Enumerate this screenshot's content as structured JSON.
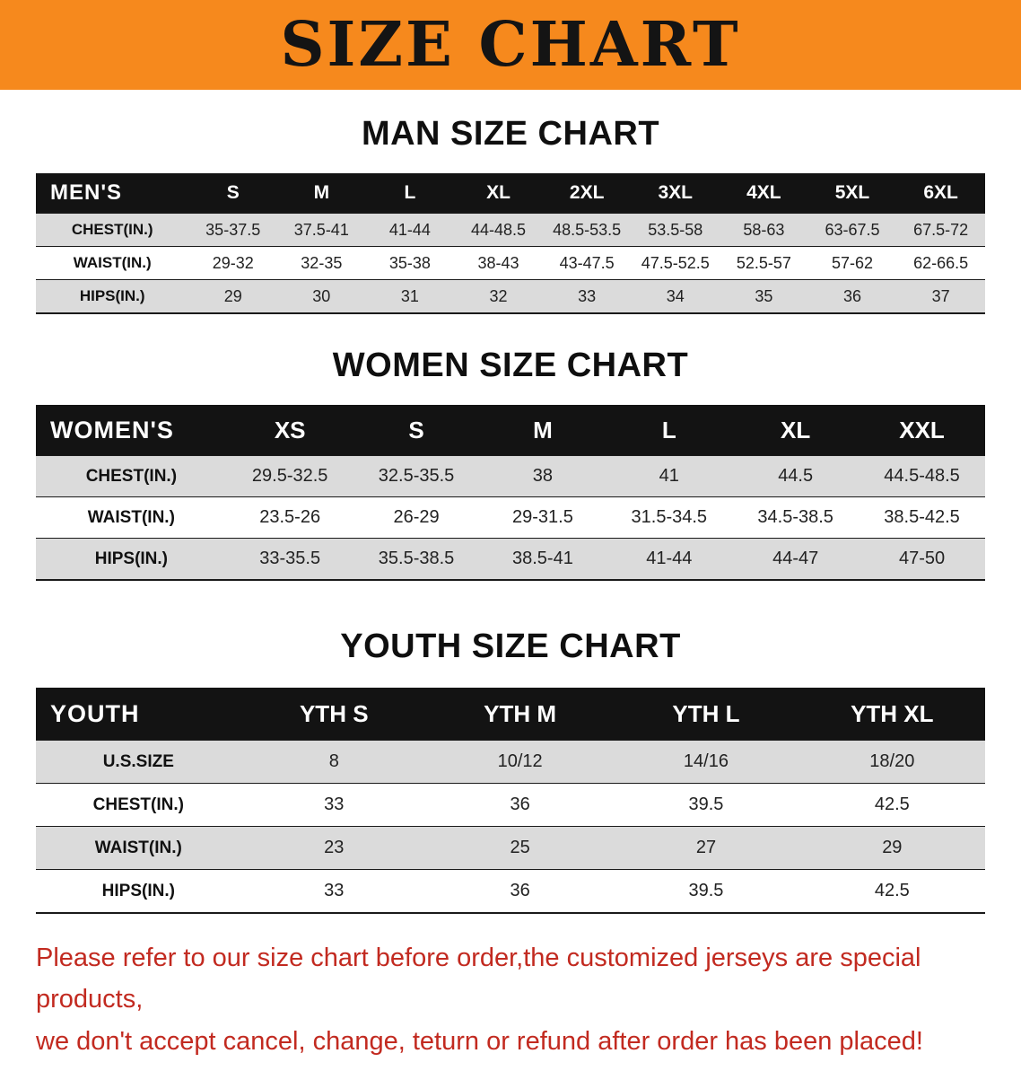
{
  "banner": {
    "title": "SIZE CHART"
  },
  "colors": {
    "banner_bg": "#F6891D",
    "table_header_bg": "#131313",
    "row_shade": "#DBDBDB",
    "disclaimer_text": "#C22A20"
  },
  "sections": {
    "men": {
      "title": "MAN SIZE CHART",
      "table": {
        "header_label": "MEN'S",
        "columns": [
          "S",
          "M",
          "L",
          "XL",
          "2XL",
          "3XL",
          "4XL",
          "5XL",
          "6XL"
        ],
        "rows": [
          {
            "label": "CHEST(IN.)",
            "values": [
              "35-37.5",
              "37.5-41",
              "41-44",
              "44-48.5",
              "48.5-53.5",
              "53.5-58",
              "58-63",
              "63-67.5",
              "67.5-72"
            ]
          },
          {
            "label": "WAIST(IN.)",
            "values": [
              "29-32",
              "32-35",
              "35-38",
              "38-43",
              "43-47.5",
              "47.5-52.5",
              "52.5-57",
              "57-62",
              "62-66.5"
            ]
          },
          {
            "label": "HIPS(IN.)",
            "values": [
              "29",
              "30",
              "31",
              "32",
              "33",
              "34",
              "35",
              "36",
              "37"
            ]
          }
        ]
      }
    },
    "women": {
      "title": "WOMEN SIZE CHART",
      "table": {
        "header_label": "WOMEN'S",
        "columns": [
          "XS",
          "S",
          "M",
          "L",
          "XL",
          "XXL"
        ],
        "rows": [
          {
            "label": "CHEST(IN.)",
            "values": [
              "29.5-32.5",
              "32.5-35.5",
              "38",
              "41",
              "44.5",
              "44.5-48.5"
            ]
          },
          {
            "label": "WAIST(IN.)",
            "values": [
              "23.5-26",
              "26-29",
              "29-31.5",
              "31.5-34.5",
              "34.5-38.5",
              "38.5-42.5"
            ]
          },
          {
            "label": "HIPS(IN.)",
            "values": [
              "33-35.5",
              "35.5-38.5",
              "38.5-41",
              "41-44",
              "44-47",
              "47-50"
            ]
          }
        ]
      }
    },
    "youth": {
      "title": "YOUTH SIZE CHART",
      "table": {
        "header_label": "YOUTH",
        "columns": [
          "YTH S",
          "YTH M",
          "YTH L",
          "YTH XL"
        ],
        "rows": [
          {
            "label": "U.S.SIZE",
            "values": [
              "8",
              "10/12",
              "14/16",
              "18/20"
            ]
          },
          {
            "label": "CHEST(IN.)",
            "values": [
              "33",
              "36",
              "39.5",
              "42.5"
            ]
          },
          {
            "label": "WAIST(IN.)",
            "values": [
              "23",
              "25",
              "27",
              "29"
            ]
          },
          {
            "label": "HIPS(IN.)",
            "values": [
              "33",
              "36",
              "39.5",
              "42.5"
            ]
          }
        ]
      }
    }
  },
  "footer": {
    "line1": "Please refer to our size chart before order,the customized jerseys are special products,",
    "line2": "we don't accept cancel, change, teturn or refund after order has been placed!"
  }
}
